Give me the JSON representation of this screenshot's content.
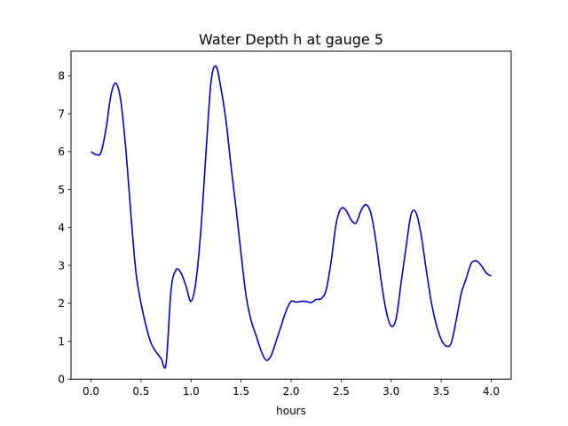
{
  "chart_data": {
    "type": "line",
    "title": "Water Depth h at gauge 5",
    "xlabel": "hours",
    "ylabel": "",
    "xlim": [
      -0.2,
      4.2
    ],
    "ylim": [
      0,
      8.65
    ],
    "grid": false,
    "x_ticks": [
      0.0,
      0.5,
      1.0,
      1.5,
      2.0,
      2.5,
      3.0,
      3.5,
      4.0
    ],
    "x_tick_labels": [
      "0.0",
      "0.5",
      "1.0",
      "1.5",
      "2.0",
      "2.5",
      "3.0",
      "3.5",
      "4.0"
    ],
    "y_ticks": [
      0,
      1,
      2,
      3,
      4,
      5,
      6,
      7,
      8
    ],
    "y_tick_labels": [
      "0",
      "1",
      "2",
      "3",
      "4",
      "5",
      "6",
      "7",
      "8"
    ],
    "series": [
      {
        "color": "#0000cc",
        "x": [
          0.0,
          0.05,
          0.1,
          0.15,
          0.2,
          0.25,
          0.3,
          0.35,
          0.4,
          0.45,
          0.5,
          0.55,
          0.6,
          0.65,
          0.7,
          0.75,
          0.8,
          0.85,
          0.9,
          0.95,
          1.0,
          1.05,
          1.1,
          1.15,
          1.2,
          1.25,
          1.3,
          1.35,
          1.4,
          1.45,
          1.5,
          1.55,
          1.6,
          1.65,
          1.7,
          1.75,
          1.8,
          1.85,
          1.9,
          1.95,
          2.0,
          2.05,
          2.1,
          2.15,
          2.2,
          2.25,
          2.3,
          2.35,
          2.4,
          2.45,
          2.5,
          2.55,
          2.6,
          2.65,
          2.7,
          2.75,
          2.8,
          2.85,
          2.9,
          2.95,
          3.0,
          3.05,
          3.1,
          3.15,
          3.2,
          3.25,
          3.3,
          3.35,
          3.4,
          3.45,
          3.5,
          3.55,
          3.6,
          3.65,
          3.7,
          3.75,
          3.8,
          3.85,
          3.9,
          3.95,
          4.0
        ],
        "y": [
          6.0,
          5.92,
          5.98,
          6.6,
          7.5,
          7.8,
          7.3,
          6.0,
          4.3,
          2.8,
          2.0,
          1.4,
          0.95,
          0.72,
          0.55,
          0.4,
          2.35,
          2.88,
          2.8,
          2.45,
          2.05,
          2.6,
          4.0,
          6.0,
          7.85,
          8.25,
          7.65,
          6.8,
          5.6,
          4.5,
          3.3,
          2.2,
          1.55,
          1.15,
          0.75,
          0.5,
          0.62,
          1.0,
          1.4,
          1.8,
          2.05,
          2.03,
          2.05,
          2.05,
          2.02,
          2.1,
          2.12,
          2.35,
          3.1,
          4.1,
          4.5,
          4.45,
          4.2,
          4.12,
          4.45,
          4.6,
          4.35,
          3.6,
          2.6,
          1.8,
          1.4,
          1.6,
          2.55,
          3.5,
          4.35,
          4.38,
          3.8,
          2.9,
          2.05,
          1.45,
          1.05,
          0.87,
          0.95,
          1.55,
          2.25,
          2.65,
          3.05,
          3.12,
          3.0,
          2.8,
          2.72
        ]
      }
    ]
  }
}
